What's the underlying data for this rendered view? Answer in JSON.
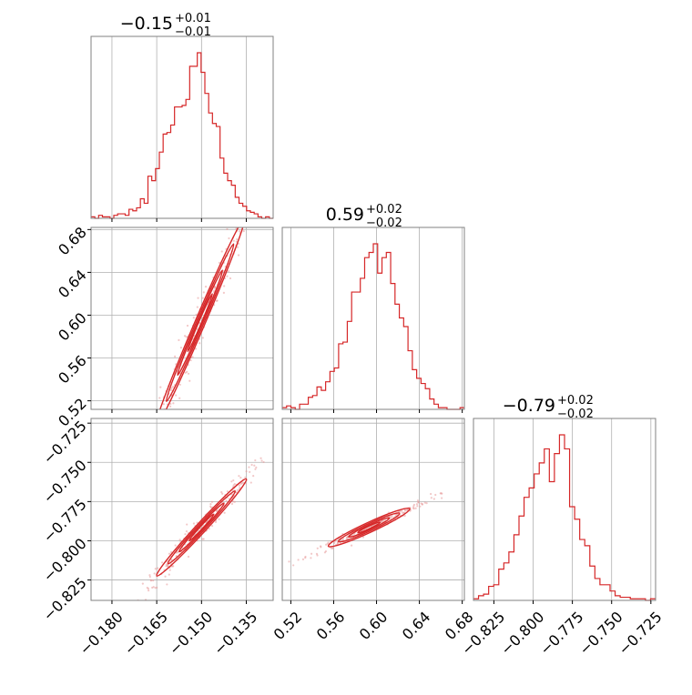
{
  "chart_data": {
    "type": "corner",
    "parameters": [
      {
        "range": [
          -0.187,
          -0.126
        ],
        "ticks": [
          -0.18,
          -0.165,
          -0.15,
          -0.135
        ],
        "tick_labels": [
          "−0.180",
          "−0.165",
          "−0.150",
          "−0.135"
        ],
        "title": {
          "main": "−0.15",
          "sup": "+0.01",
          "sub": "−0.01"
        },
        "histogram": [
          1,
          0,
          2,
          1,
          1,
          0,
          2,
          3,
          3,
          2,
          6,
          5,
          7,
          13,
          10,
          28,
          25,
          33,
          44,
          56,
          57,
          62,
          74,
          74,
          75,
          79,
          101,
          101,
          110,
          97,
          83,
          70,
          63,
          61,
          40,
          30,
          25,
          22,
          14,
          10,
          8,
          5,
          4,
          3,
          1,
          0,
          1,
          0
        ]
      },
      {
        "range": [
          0.512,
          0.682
        ],
        "ticks": [
          0.52,
          0.56,
          0.6,
          0.64,
          0.68
        ],
        "tick_labels": [
          "0.52",
          "0.56",
          "0.60",
          "0.64",
          "0.68"
        ],
        "title": {
          "main": "0.59",
          "sup": "+0.02",
          "sub": "−0.02"
        },
        "histogram": [
          1,
          2,
          1,
          0,
          3,
          3,
          7,
          8,
          13,
          11,
          16,
          22,
          24,
          38,
          39,
          51,
          68,
          68,
          76,
          88,
          91,
          96,
          79,
          88,
          91,
          73,
          61,
          53,
          48,
          34,
          23,
          18,
          15,
          12,
          6,
          3,
          1,
          1,
          0,
          0,
          0,
          1
        ]
      },
      {
        "range": [
          -0.838,
          -0.722
        ],
        "ticks": [
          -0.825,
          -0.8,
          -0.775,
          -0.75,
          -0.725
        ],
        "tick_labels": [
          "−0.825",
          "−0.800",
          "−0.775",
          "−0.750",
          "−0.725"
        ],
        "title": {
          "main": "−0.79",
          "sup": "+0.02",
          "sub": "−0.02"
        },
        "histogram": [
          1,
          3,
          4,
          9,
          10,
          20,
          24,
          31,
          42,
          54,
          66,
          72,
          81,
          88,
          97,
          76,
          94,
          106,
          97,
          60,
          52,
          39,
          35,
          22,
          14,
          10,
          10,
          6,
          3,
          2,
          2,
          1,
          1,
          1,
          0,
          1
        ]
      }
    ],
    "pairs": [
      {
        "x_param": 0,
        "y_param": 1,
        "slope": 6.54,
        "center": [
          -0.1505,
          0.593
        ],
        "sd_x": 0.0075,
        "sd_perp": 0.0016
      },
      {
        "x_param": 0,
        "y_param": 2,
        "slope": 2.06,
        "center": [
          -0.15,
          -0.7915
        ],
        "sd_x": 0.0075,
        "sd_perp": 0.0012
      },
      {
        "x_param": 1,
        "y_param": 2,
        "slope": 0.315,
        "center": [
          0.593,
          -0.7915
        ],
        "sd_x": 0.019,
        "sd_perp": 0.0012
      }
    ],
    "colors": {
      "line": "#d62728",
      "points": "#e89a9b",
      "grid": "#b0b0b0",
      "frame": "#808080"
    },
    "grid": true
  }
}
